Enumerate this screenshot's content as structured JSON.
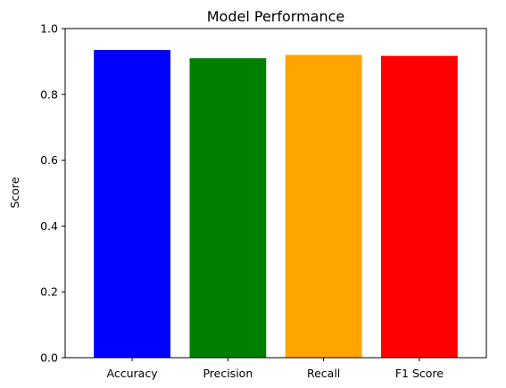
{
  "chart_data": {
    "type": "bar",
    "title": "Model Performance",
    "xlabel": "",
    "ylabel": "Score",
    "ylim": [
      0,
      1.0
    ],
    "yticks": [
      "0.0",
      "0.2",
      "0.4",
      "0.6",
      "0.8",
      "1.0"
    ],
    "categories": [
      "Accuracy",
      "Precision",
      "Recall",
      "F1 Score"
    ],
    "values": [
      0.935,
      0.91,
      0.92,
      0.917
    ],
    "colors": [
      "#0000ff",
      "#008000",
      "#ffa500",
      "#ff0000"
    ],
    "grid": false,
    "legend": "none"
  }
}
